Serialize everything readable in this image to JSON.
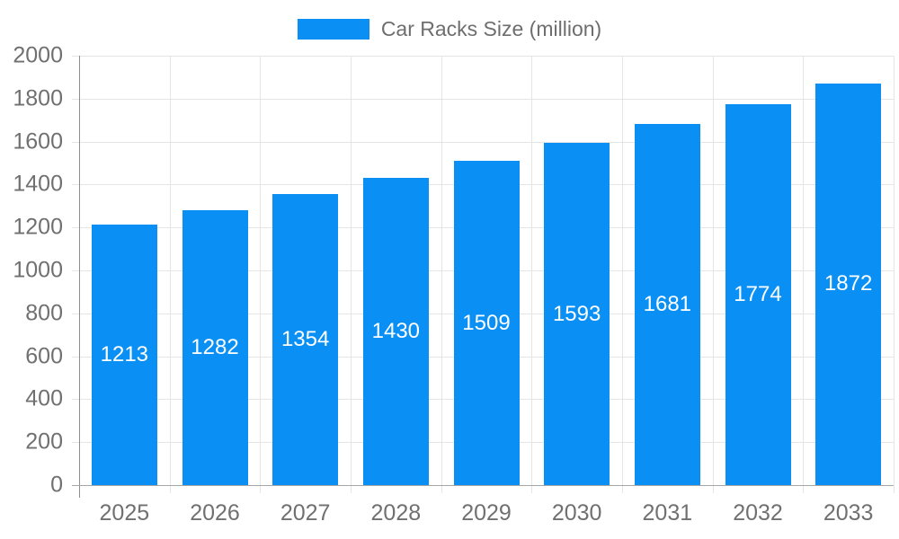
{
  "legend": {
    "label": "Car Racks Size (million)"
  },
  "chart_data": {
    "type": "bar",
    "title": "Car Racks Size (million)",
    "categories": [
      "2025",
      "2026",
      "2027",
      "2028",
      "2029",
      "2030",
      "2031",
      "2032",
      "2033"
    ],
    "values": [
      1213,
      1282,
      1354,
      1430,
      1509,
      1593,
      1681,
      1774,
      1872
    ],
    "xlabel": "",
    "ylabel": "",
    "ylim": [
      0,
      2000
    ],
    "yticks": [
      0,
      200,
      400,
      600,
      800,
      1000,
      1200,
      1400,
      1600,
      1800,
      2000
    ],
    "grid": true,
    "legend_position": "top",
    "bar_color": "#0A90F5",
    "value_label_color": "#FFFFFF",
    "axis_text_color": "#707070",
    "grid_color": "#E5E5E5",
    "y_axis_line_color": "#8E8E8E",
    "x_axis_line_color": "#A6A6A6"
  }
}
